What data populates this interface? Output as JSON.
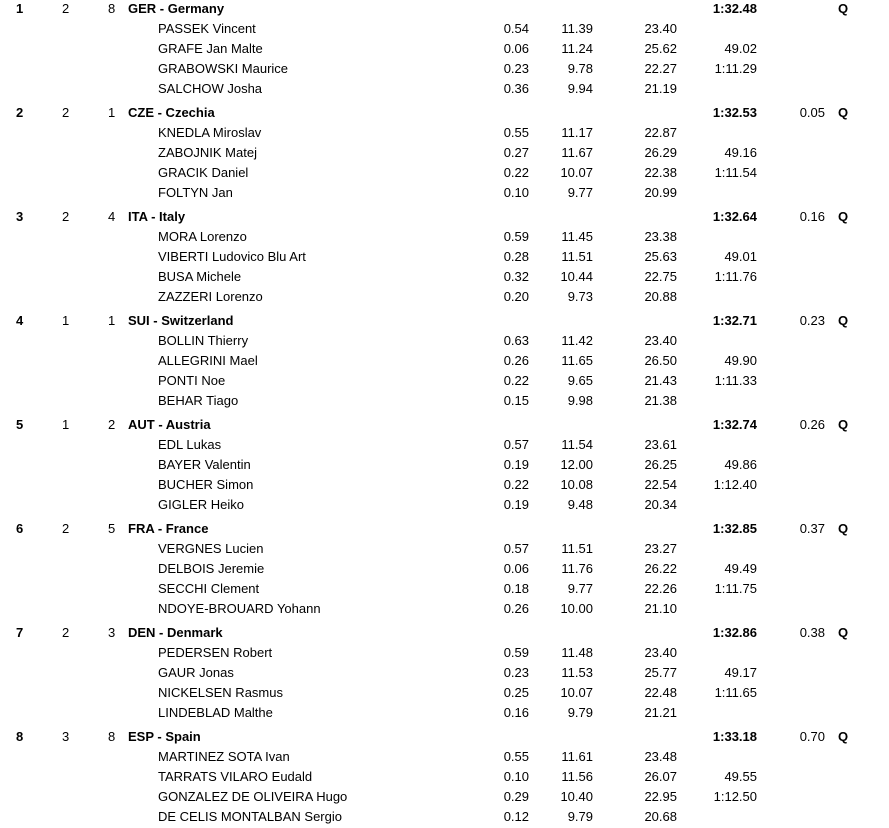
{
  "teams": [
    {
      "rank": "1",
      "heat": "2",
      "lane": "8",
      "team": "GER - Germany",
      "time": "1:32.48",
      "behind": "",
      "qual": "Q",
      "athletes": [
        {
          "name": "PASSEK Vincent",
          "reaction": "0.54",
          "split": "11.39",
          "leg": "23.40",
          "cum": ""
        },
        {
          "name": "GRAFE Jan Malte",
          "reaction": "0.06",
          "split": "11.24",
          "leg": "25.62",
          "cum": "49.02"
        },
        {
          "name": "GRABOWSKI Maurice",
          "reaction": "0.23",
          "split": "9.78",
          "leg": "22.27",
          "cum": "1:11.29"
        },
        {
          "name": "SALCHOW Josha",
          "reaction": "0.36",
          "split": "9.94",
          "leg": "21.19",
          "cum": ""
        }
      ]
    },
    {
      "rank": "2",
      "heat": "2",
      "lane": "1",
      "team": "CZE - Czechia",
      "time": "1:32.53",
      "behind": "0.05",
      "qual": "Q",
      "athletes": [
        {
          "name": "KNEDLA Miroslav",
          "reaction": "0.55",
          "split": "11.17",
          "leg": "22.87",
          "cum": ""
        },
        {
          "name": "ZABOJNIK Matej",
          "reaction": "0.27",
          "split": "11.67",
          "leg": "26.29",
          "cum": "49.16"
        },
        {
          "name": "GRACIK Daniel",
          "reaction": "0.22",
          "split": "10.07",
          "leg": "22.38",
          "cum": "1:11.54"
        },
        {
          "name": "FOLTYN Jan",
          "reaction": "0.10",
          "split": "9.77",
          "leg": "20.99",
          "cum": ""
        }
      ]
    },
    {
      "rank": "3",
      "heat": "2",
      "lane": "4",
      "team": "ITA - Italy",
      "time": "1:32.64",
      "behind": "0.16",
      "qual": "Q",
      "athletes": [
        {
          "name": "MORA Lorenzo",
          "reaction": "0.59",
          "split": "11.45",
          "leg": "23.38",
          "cum": ""
        },
        {
          "name": "VIBERTI Ludovico Blu Art",
          "reaction": "0.28",
          "split": "11.51",
          "leg": "25.63",
          "cum": "49.01"
        },
        {
          "name": "BUSA Michele",
          "reaction": "0.32",
          "split": "10.44",
          "leg": "22.75",
          "cum": "1:11.76"
        },
        {
          "name": "ZAZZERI Lorenzo",
          "reaction": "0.20",
          "split": "9.73",
          "leg": "20.88",
          "cum": ""
        }
      ]
    },
    {
      "rank": "4",
      "heat": "1",
      "lane": "1",
      "team": "SUI - Switzerland",
      "time": "1:32.71",
      "behind": "0.23",
      "qual": "Q",
      "athletes": [
        {
          "name": "BOLLIN Thierry",
          "reaction": "0.63",
          "split": "11.42",
          "leg": "23.40",
          "cum": ""
        },
        {
          "name": "ALLEGRINI Mael",
          "reaction": "0.26",
          "split": "11.65",
          "leg": "26.50",
          "cum": "49.90"
        },
        {
          "name": "PONTI Noe",
          "reaction": "0.22",
          "split": "9.65",
          "leg": "21.43",
          "cum": "1:11.33"
        },
        {
          "name": "BEHAR Tiago",
          "reaction": "0.15",
          "split": "9.98",
          "leg": "21.38",
          "cum": ""
        }
      ]
    },
    {
      "rank": "5",
      "heat": "1",
      "lane": "2",
      "team": "AUT - Austria",
      "time": "1:32.74",
      "behind": "0.26",
      "qual": "Q",
      "athletes": [
        {
          "name": "EDL Lukas",
          "reaction": "0.57",
          "split": "11.54",
          "leg": "23.61",
          "cum": ""
        },
        {
          "name": "BAYER Valentin",
          "reaction": "0.19",
          "split": "12.00",
          "leg": "26.25",
          "cum": "49.86"
        },
        {
          "name": "BUCHER Simon",
          "reaction": "0.22",
          "split": "10.08",
          "leg": "22.54",
          "cum": "1:12.40"
        },
        {
          "name": "GIGLER Heiko",
          "reaction": "0.19",
          "split": "9.48",
          "leg": "20.34",
          "cum": ""
        }
      ]
    },
    {
      "rank": "6",
      "heat": "2",
      "lane": "5",
      "team": "FRA - France",
      "time": "1:32.85",
      "behind": "0.37",
      "qual": "Q",
      "athletes": [
        {
          "name": "VERGNES Lucien",
          "reaction": "0.57",
          "split": "11.51",
          "leg": "23.27",
          "cum": ""
        },
        {
          "name": "DELBOIS Jeremie",
          "reaction": "0.06",
          "split": "11.76",
          "leg": "26.22",
          "cum": "49.49"
        },
        {
          "name": "SECCHI Clement",
          "reaction": "0.18",
          "split": "9.77",
          "leg": "22.26",
          "cum": "1:11.75"
        },
        {
          "name": "NDOYE-BROUARD Yohann",
          "reaction": "0.26",
          "split": "10.00",
          "leg": "21.10",
          "cum": ""
        }
      ]
    },
    {
      "rank": "7",
      "heat": "2",
      "lane": "3",
      "team": "DEN - Denmark",
      "time": "1:32.86",
      "behind": "0.38",
      "qual": "Q",
      "athletes": [
        {
          "name": "PEDERSEN Robert",
          "reaction": "0.59",
          "split": "11.48",
          "leg": "23.40",
          "cum": ""
        },
        {
          "name": "GAUR Jonas",
          "reaction": "0.23",
          "split": "11.53",
          "leg": "25.77",
          "cum": "49.17"
        },
        {
          "name": "NICKELSEN Rasmus",
          "reaction": "0.25",
          "split": "10.07",
          "leg": "22.48",
          "cum": "1:11.65"
        },
        {
          "name": "LINDEBLAD Malthe",
          "reaction": "0.16",
          "split": "9.79",
          "leg": "21.21",
          "cum": ""
        }
      ]
    },
    {
      "rank": "8",
      "heat": "3",
      "lane": "8",
      "team": "ESP - Spain",
      "time": "1:33.18",
      "behind": "0.70",
      "qual": "Q",
      "athletes": [
        {
          "name": "MARTINEZ SOTA Ivan",
          "reaction": "0.55",
          "split": "11.61",
          "leg": "23.48",
          "cum": ""
        },
        {
          "name": "TARRATS VILARO Eudald",
          "reaction": "0.10",
          "split": "11.56",
          "leg": "26.07",
          "cum": "49.55"
        },
        {
          "name": "GONZALEZ DE OLIVEIRA Hugo",
          "reaction": "0.29",
          "split": "10.40",
          "leg": "22.95",
          "cum": "1:12.50"
        },
        {
          "name": "DE CELIS MONTALBAN Sergio",
          "reaction": "0.12",
          "split": "9.79",
          "leg": "20.68",
          "cum": ""
        }
      ]
    }
  ]
}
